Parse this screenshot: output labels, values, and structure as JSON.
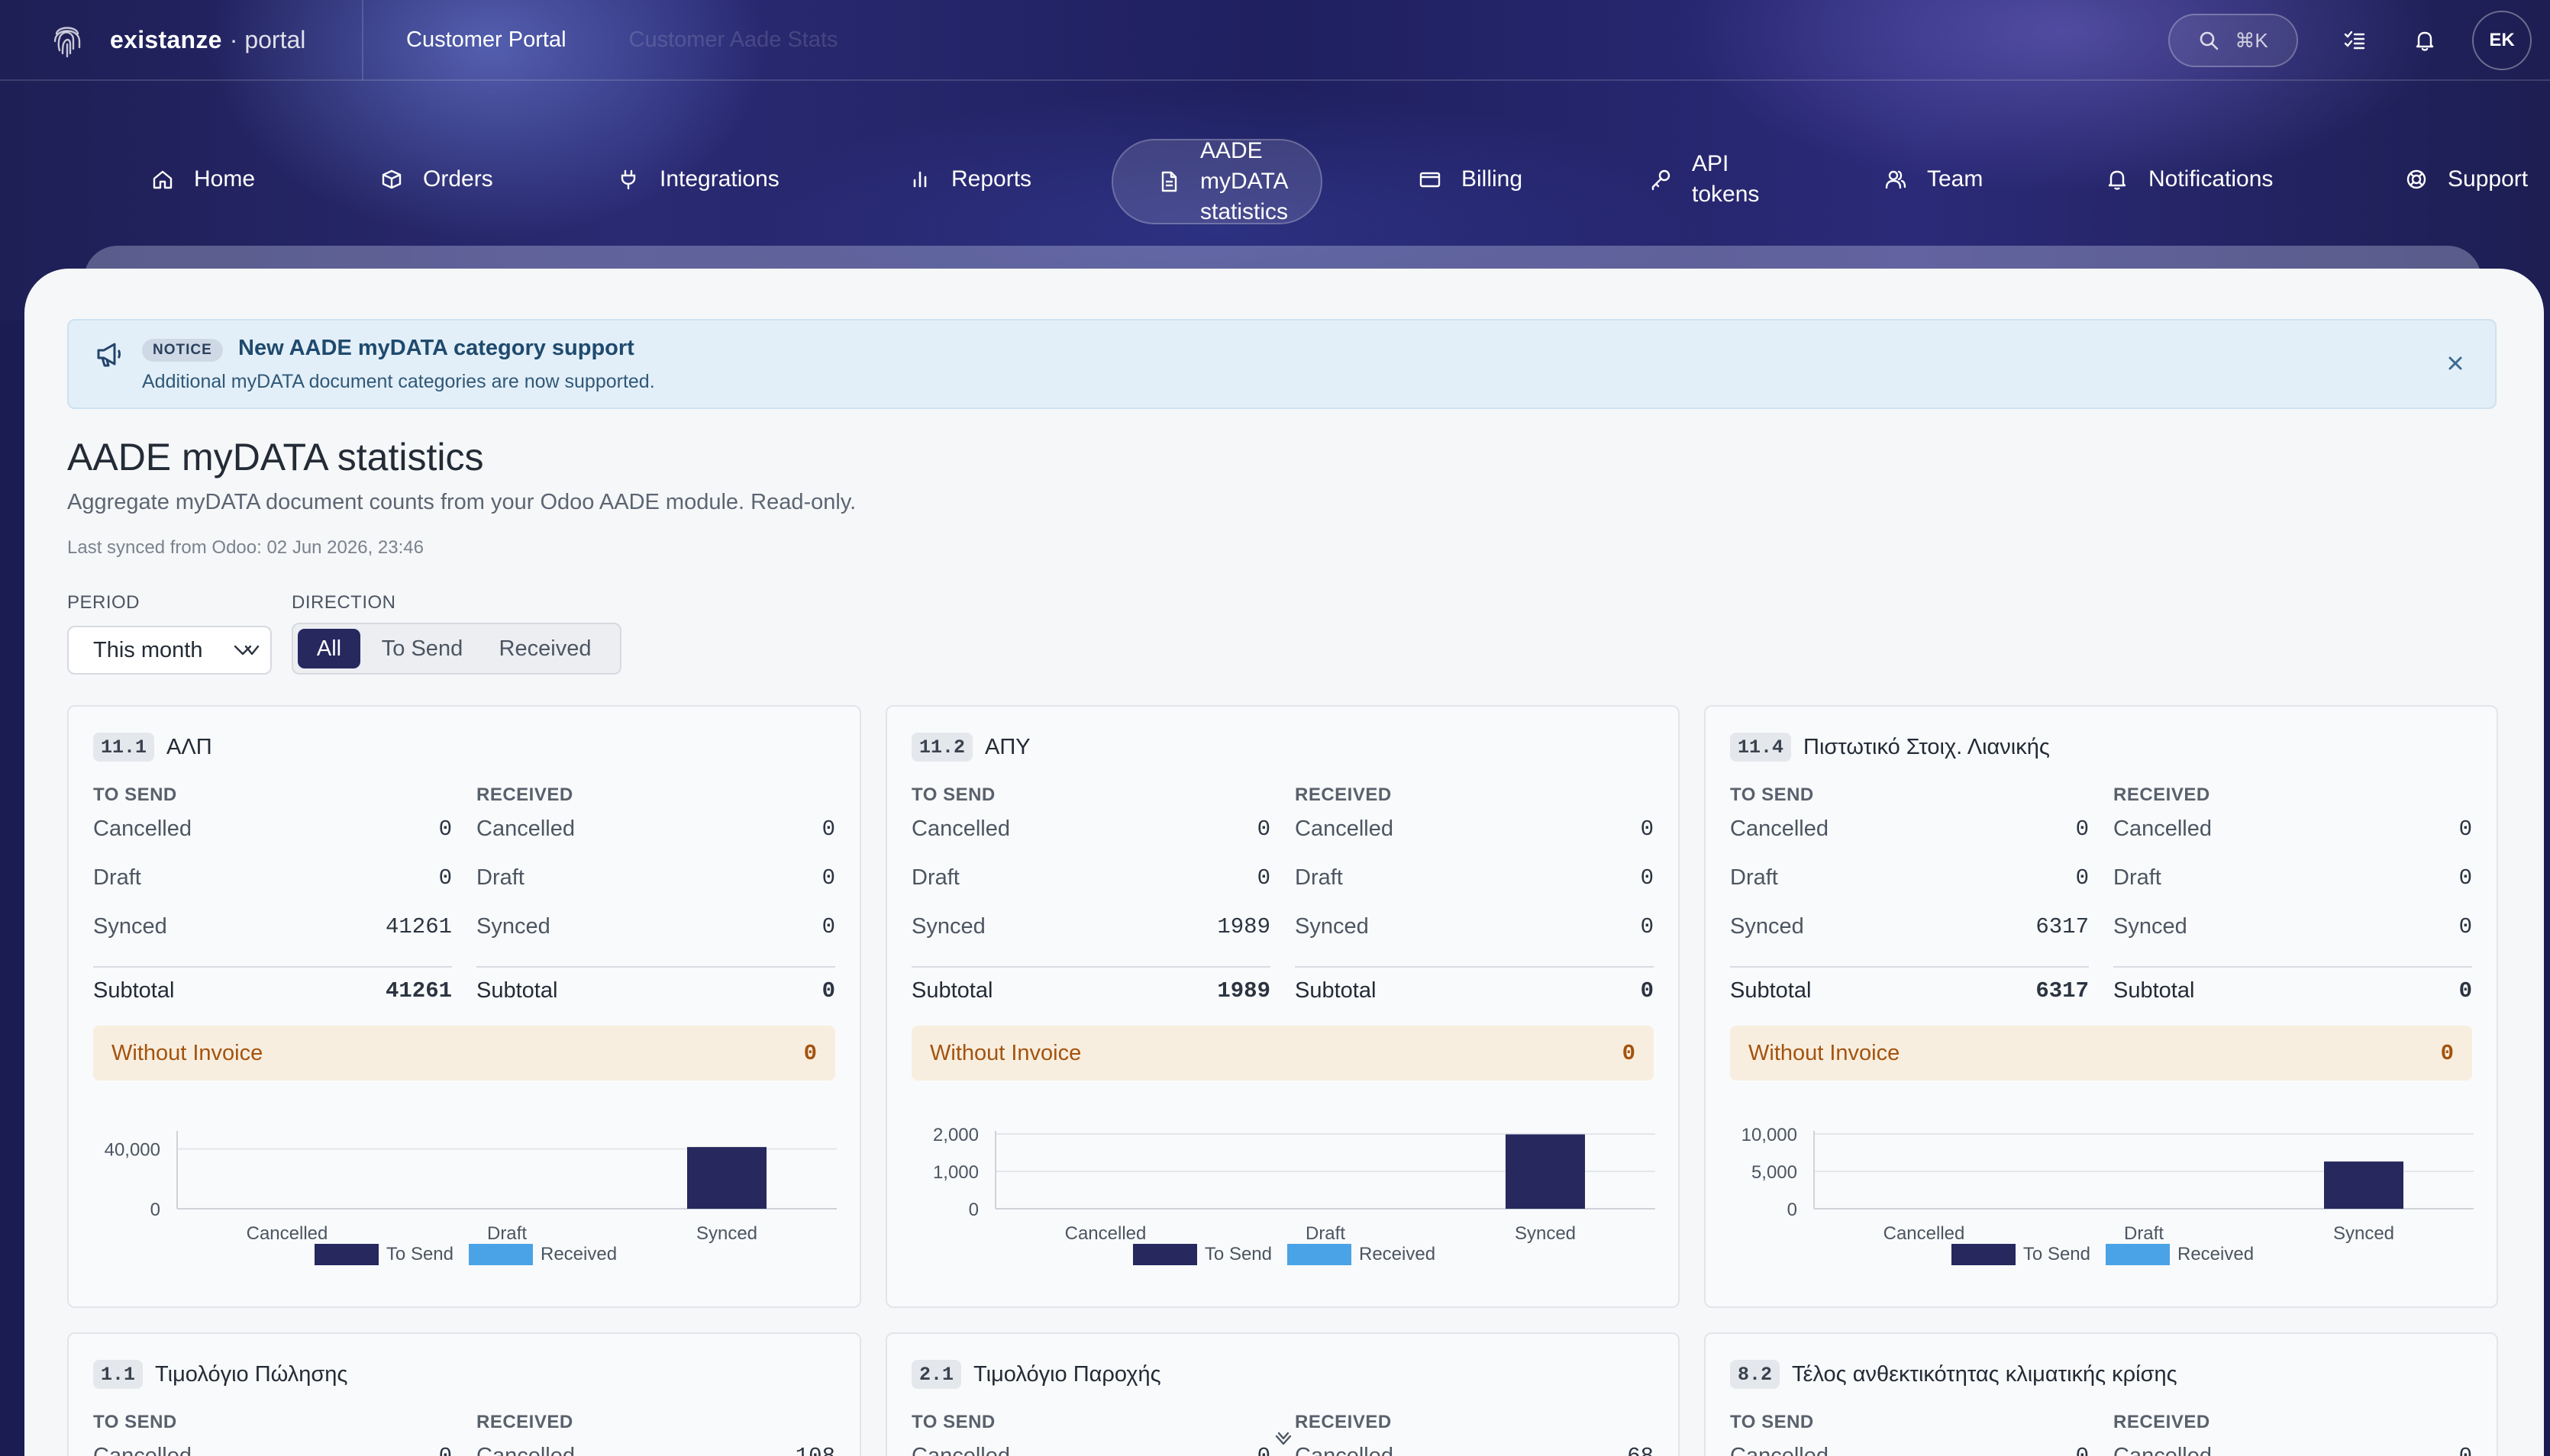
{
  "topbar": {
    "brand_name": "existanze",
    "brand_sub": "· portal",
    "crumb_primary": "Customer Portal",
    "crumb_secondary": "Customer Aade Stats",
    "search_shortcut": "⌘K",
    "avatar_initials": "EK"
  },
  "nav": {
    "items": [
      {
        "label": "Home",
        "icon": "home-icon"
      },
      {
        "label": "Orders",
        "icon": "box-icon"
      },
      {
        "label": "Integrations",
        "icon": "plug-icon"
      },
      {
        "label": "Reports",
        "icon": "bar-chart-icon"
      },
      {
        "label": "AADE\nmyDATA\nstatistics",
        "icon": "document-icon",
        "active": true
      },
      {
        "label": "Billing",
        "icon": "credit-card-icon"
      },
      {
        "label": "API\ntokens",
        "icon": "key-icon"
      },
      {
        "label": "Team",
        "icon": "users-icon"
      },
      {
        "label": "Notifications",
        "icon": "bell-icon"
      },
      {
        "label": "Support",
        "icon": "lifebuoy-icon"
      }
    ]
  },
  "notice": {
    "badge": "NOTICE",
    "title": "New AADE myDATA category support",
    "text": "Additional myDATA document categories are now supported."
  },
  "page": {
    "title": "AADE myDATA statistics",
    "subtitle": "Aggregate myDATA document counts from your Odoo AADE module. Read-only.",
    "last_synced": "Last synced from Odoo: 02 Jun 2026, 23:46"
  },
  "filters": {
    "period_label": "PERIOD",
    "period_value": "This month",
    "direction_label": "DIRECTION",
    "direction_options": [
      "All",
      "To Send",
      "Received"
    ],
    "direction_selected": "All"
  },
  "labels": {
    "to_send": "TO SEND",
    "received": "RECEIVED",
    "cancelled": "Cancelled",
    "draft": "Draft",
    "synced": "Synced",
    "subtotal": "Subtotal",
    "without_invoice": "Without Invoice",
    "legend_to_send": "To Send",
    "legend_received": "Received"
  },
  "colors": {
    "to_send": "#26285e",
    "received": "#4aa3e6",
    "warning": "#a4530e"
  },
  "cards": [
    {
      "code": "11.1",
      "name": "ΑΛΠ",
      "to_send": {
        "cancelled": "0",
        "draft": "0",
        "synced": "41261",
        "subtotal": "41261"
      },
      "received": {
        "cancelled": "0",
        "draft": "0",
        "synced": "0",
        "subtotal": "0"
      },
      "without_invoice": "0"
    },
    {
      "code": "11.2",
      "name": "ΑΠΥ",
      "to_send": {
        "cancelled": "0",
        "draft": "0",
        "synced": "1989",
        "subtotal": "1989"
      },
      "received": {
        "cancelled": "0",
        "draft": "0",
        "synced": "0",
        "subtotal": "0"
      },
      "without_invoice": "0"
    },
    {
      "code": "11.4",
      "name": "Πιστωτικό Στοιχ. Λιανικής",
      "to_send": {
        "cancelled": "0",
        "draft": "0",
        "synced": "6317",
        "subtotal": "6317"
      },
      "received": {
        "cancelled": "0",
        "draft": "0",
        "synced": "0",
        "subtotal": "0"
      },
      "without_invoice": "0"
    },
    {
      "code": "1.1",
      "name": "Τιμολόγιο Πώλησης",
      "to_send": {
        "cancelled": "0"
      },
      "received": {
        "cancelled": "108"
      }
    },
    {
      "code": "2.1",
      "name": "Τιμολόγιο Παροχής",
      "to_send": {
        "cancelled": "0"
      },
      "received": {
        "cancelled": "68"
      }
    },
    {
      "code": "8.2",
      "name": "Τέλος ανθεκτικότητας κλιματικής κρίσης",
      "to_send": {
        "cancelled": "0"
      },
      "received": {
        "cancelled": "0"
      }
    }
  ],
  "chart_data": [
    {
      "type": "bar",
      "categories": [
        "Cancelled",
        "Draft",
        "Synced"
      ],
      "series": [
        {
          "name": "To Send",
          "values": [
            0,
            0,
            41261
          ]
        },
        {
          "name": "Received",
          "values": [
            0,
            0,
            0
          ]
        }
      ],
      "ylim": [
        0,
        50000
      ],
      "yticks": [
        0,
        40000
      ],
      "ytick_labels": [
        "0",
        "40,000"
      ],
      "legend": "bottom"
    },
    {
      "type": "bar",
      "categories": [
        "Cancelled",
        "Draft",
        "Synced"
      ],
      "series": [
        {
          "name": "To Send",
          "values": [
            0,
            0,
            1989
          ]
        },
        {
          "name": "Received",
          "values": [
            0,
            0,
            0
          ]
        }
      ],
      "ylim": [
        0,
        2000
      ],
      "yticks": [
        0,
        1000,
        2000
      ],
      "ytick_labels": [
        "0",
        "1,000",
        "2,000"
      ],
      "legend": "bottom"
    },
    {
      "type": "bar",
      "categories": [
        "Cancelled",
        "Draft",
        "Synced"
      ],
      "series": [
        {
          "name": "To Send",
          "values": [
            0,
            0,
            6317
          ]
        },
        {
          "name": "Received",
          "values": [
            0,
            0,
            0
          ]
        }
      ],
      "ylim": [
        0,
        10000
      ],
      "yticks": [
        0,
        5000,
        10000
      ],
      "ytick_labels": [
        "0",
        "5,000",
        "10,000"
      ],
      "legend": "bottom"
    }
  ]
}
